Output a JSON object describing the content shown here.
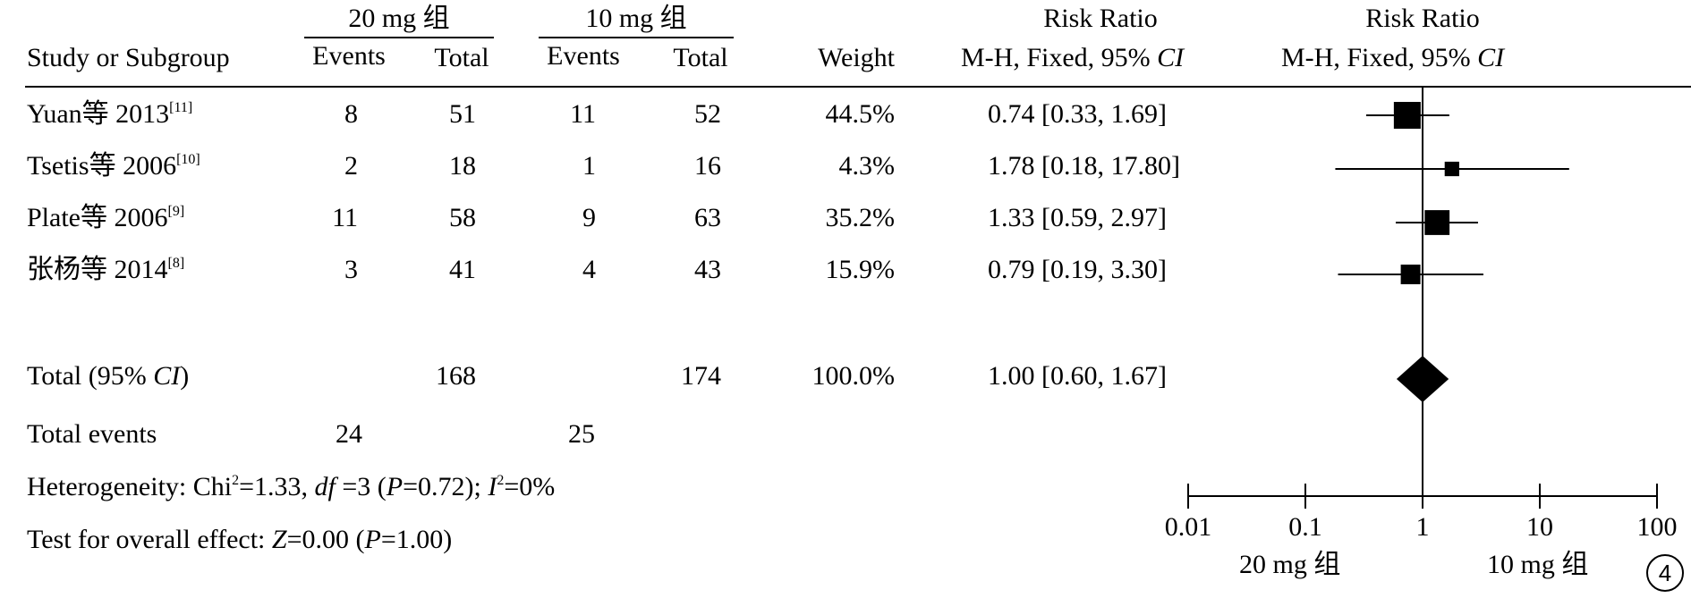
{
  "header": {
    "group1": "20 mg 组",
    "group2": "10 mg 组",
    "study_col": "Study or Subgroup",
    "events": "Events",
    "total": "Total",
    "weight": "Weight",
    "rr_title": "Risk Ratio",
    "rr_method": "M-H, Fixed, 95% ",
    "ci": "CI"
  },
  "studies": [
    {
      "name": "Yuan等 2013",
      "ref": "[11]",
      "e1": "8",
      "t1": "51",
      "e2": "11",
      "t2": "52",
      "weight": "44.5%",
      "rr_text": "0.74 [0.33, 1.69]"
    },
    {
      "name": "Tsetis等 2006",
      "ref": "[10]",
      "e1": "2",
      "t1": "18",
      "e2": "1",
      "t2": "16",
      "weight": "4.3%",
      "rr_text": "1.78 [0.18, 17.80]"
    },
    {
      "name": "Plate等 2006",
      "ref": "[9]",
      "e1": "11",
      "t1": "58",
      "e2": "9",
      "t2": "63",
      "weight": "35.2%",
      "rr_text": "1.33 [0.59, 2.97]"
    },
    {
      "name": "张杨等 2014",
      "ref": "[8]",
      "e1": "3",
      "t1": "41",
      "e2": "4",
      "t2": "43",
      "weight": "15.9%",
      "rr_text": "0.79 [0.19, 3.30]"
    }
  ],
  "total": {
    "label_pre": "Total (95% ",
    "label_ci": "CI",
    "label_post": ")",
    "t1": "168",
    "t2": "174",
    "weight": "100.0%",
    "rr_text": "1.00 [0.60, 1.67]"
  },
  "total_events": {
    "label": "Total events",
    "e1": "24",
    "e2": "25"
  },
  "heterogeneity": {
    "p1": "Heterogeneity: Chi",
    "p2": "=1.33, ",
    "df": "df",
    "p3": " =3 (",
    "P": "P",
    "p4": "=0.72); ",
    "I": "I",
    "p5": "=0%",
    "sup": "2"
  },
  "overall": {
    "p1": "Test for overall effect: ",
    "Z": "Z",
    "p2": "=0.00 (",
    "P": "P",
    "p3": "=1.00)"
  },
  "axis": {
    "ticks": [
      "0.01",
      "0.1",
      "1",
      "10",
      "100"
    ],
    "left_label": "20 mg 组",
    "right_label": "10 mg 组"
  },
  "figure_number": "4",
  "chart_data": {
    "type": "forest",
    "scale": "log",
    "xlim": [
      0.01,
      100
    ],
    "reference_line": 1,
    "points": [
      {
        "study": "Yuan等 2013",
        "rr": 0.74,
        "lo": 0.33,
        "hi": 1.69,
        "weight": 44.5
      },
      {
        "study": "Tsetis等 2006",
        "rr": 1.78,
        "lo": 0.18,
        "hi": 17.8,
        "weight": 4.3
      },
      {
        "study": "Plate等 2006",
        "rr": 1.33,
        "lo": 0.59,
        "hi": 2.97,
        "weight": 35.2
      },
      {
        "study": "张杨等 2014",
        "rr": 0.79,
        "lo": 0.19,
        "hi": 3.3,
        "weight": 15.9
      }
    ],
    "pooled": {
      "rr": 1.0,
      "lo": 0.6,
      "hi": 1.67
    }
  }
}
